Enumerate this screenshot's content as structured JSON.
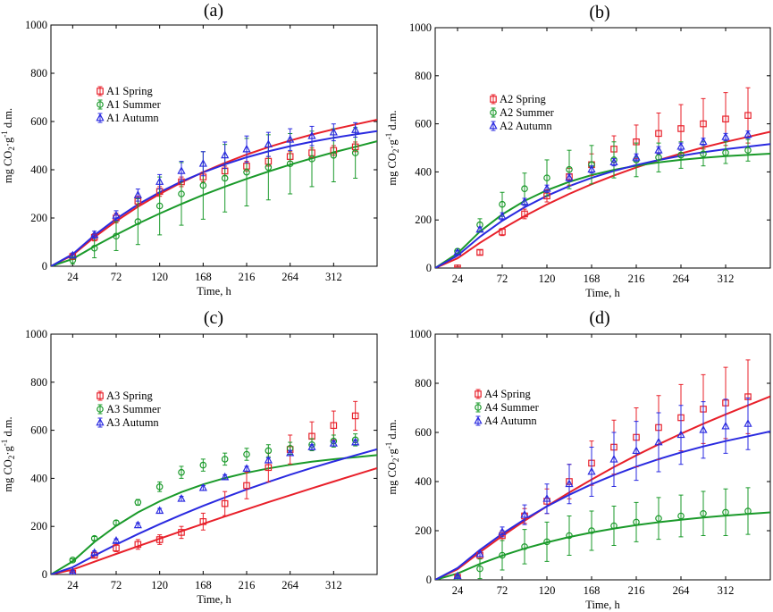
{
  "colors": {
    "spring": "#e8202a",
    "summer": "#1a9a2a",
    "autumn": "#2a2ae0"
  },
  "chart_data": [
    {
      "type": "scatter",
      "panel_label": "(a)",
      "xlabel": "Time, h",
      "ylabel_main": "mg CO",
      "ylabel_sub": "2",
      "ylabel_mid": "·g",
      "ylabel_sup": "-1",
      "ylabel_end": " d.m.",
      "xlim": [
        0,
        360
      ],
      "ylim": [
        0,
        1000
      ],
      "xticks": [
        24,
        72,
        120,
        168,
        216,
        264,
        312
      ],
      "yticks": [
        0,
        200,
        400,
        600,
        800,
        1000
      ],
      "x": [
        24,
        48,
        72,
        96,
        120,
        144,
        168,
        192,
        216,
        240,
        264,
        288,
        312,
        336
      ],
      "series": [
        {
          "name": "A1 Spring",
          "key": "spring",
          "marker": "square",
          "values": [
            40,
            120,
            200,
            270,
            310,
            350,
            370,
            395,
            415,
            435,
            455,
            470,
            480,
            495
          ],
          "errors": [
            10,
            15,
            20,
            20,
            20,
            20,
            20,
            20,
            20,
            20,
            20,
            20,
            20,
            20
          ],
          "fit": [
            46.4,
            120.6,
            187.0,
            246.5,
            299.8,
            347.5,
            390.3,
            428.6,
            462.9,
            493.6,
            521.1,
            545.8,
            567.9,
            587.7
          ]
        },
        {
          "name": "A1 Summer",
          "key": "summer",
          "marker": "circle",
          "values": [
            25,
            75,
            125,
            185,
            250,
            300,
            335,
            365,
            390,
            410,
            425,
            445,
            460,
            470
          ],
          "errors": [
            15,
            40,
            60,
            95,
            120,
            130,
            140,
            140,
            140,
            135,
            125,
            115,
            110,
            105
          ],
          "fit": [
            30.2,
            82.2,
            130.8,
            176.2,
            218.7,
            258.3,
            295.4,
            330.0,
            362.4,
            392.7,
            421.0,
            447.4,
            472.1,
            495.2
          ]
        },
        {
          "name": "A1 Autumn",
          "key": "autumn",
          "marker": "triangle",
          "values": [
            45,
            130,
            210,
            295,
            350,
            395,
            425,
            460,
            485,
            505,
            525,
            540,
            555,
            565
          ],
          "errors": [
            10,
            15,
            20,
            25,
            30,
            40,
            50,
            55,
            55,
            50,
            45,
            40,
            35,
            30
          ],
          "fit": [
            49.9,
            128.6,
            196.8,
            255.8,
            306.9,
            351.1,
            389.4,
            422.6,
            451.3,
            476.2,
            497.7,
            516.4,
            532.5,
            546.5
          ]
        }
      ]
    },
    {
      "type": "scatter",
      "panel_label": "(b)",
      "xlabel": "Time, h",
      "ylabel_main": "mg CO",
      "ylabel_sub": "2",
      "ylabel_mid": "·g",
      "ylabel_sup": "-1",
      "ylabel_end": " d.m.",
      "xlim": [
        0,
        360
      ],
      "ylim": [
        0,
        1000
      ],
      "xticks": [
        24,
        72,
        120,
        168,
        216,
        264,
        312
      ],
      "yticks": [
        0,
        200,
        400,
        600,
        800,
        1000
      ],
      "x": [
        24,
        48,
        72,
        96,
        120,
        144,
        168,
        192,
        216,
        240,
        264,
        288,
        312,
        336
      ],
      "series": [
        {
          "name": "A2 Spring",
          "key": "spring",
          "marker": "square",
          "values": [
            0,
            65,
            150,
            225,
            300,
            380,
            430,
            495,
            525,
            560,
            580,
            600,
            620,
            635
          ],
          "errors": [
            5,
            10,
            15,
            20,
            25,
            35,
            45,
            55,
            70,
            85,
            100,
            105,
            110,
            115
          ],
          "fit": [
            40.7,
            104.7,
            162.9,
            216.0,
            264.4,
            308.5,
            348.7,
            385.2,
            418.6,
            449.0,
            476.6,
            501.9,
            524.9,
            545.9
          ]
        },
        {
          "name": "A2 Summer",
          "key": "summer",
          "marker": "circle",
          "values": [
            70,
            180,
            265,
            330,
            375,
            410,
            430,
            450,
            450,
            460,
            470,
            475,
            480,
            490
          ],
          "errors": [
            10,
            25,
            50,
            65,
            75,
            80,
            80,
            75,
            70,
            60,
            55,
            50,
            45,
            45
          ],
          "fit": [
            61.0,
            151.5,
            222.9,
            279.3,
            323.8,
            358.9,
            386.6,
            408.5,
            425.8,
            439.4,
            450.2,
            458.7,
            465.4,
            470.7
          ]
        },
        {
          "name": "A2 Autumn",
          "key": "autumn",
          "marker": "triangle",
          "values": [
            65,
            160,
            215,
            275,
            330,
            375,
            410,
            440,
            460,
            490,
            505,
            525,
            545,
            555
          ],
          "errors": [
            8,
            10,
            15,
            15,
            15,
            15,
            15,
            15,
            15,
            15,
            15,
            15,
            15,
            15
          ],
          "fit": [
            51.7,
            130.1,
            196.5,
            252.8,
            300.4,
            340.8,
            375.0,
            404.0,
            428.5,
            449.3,
            466.9,
            481.8,
            494.5,
            505.2
          ]
        }
      ]
    },
    {
      "type": "scatter",
      "panel_label": "(c)",
      "xlabel": "Time, h",
      "ylabel_main": "mg CO",
      "ylabel_sub": "2",
      "ylabel_mid": "·g",
      "ylabel_sup": "-1",
      "ylabel_end": " d.m.",
      "xlim": [
        0,
        360
      ],
      "ylim": [
        0,
        1000
      ],
      "xticks": [
        24,
        72,
        120,
        168,
        216,
        264,
        312
      ],
      "yticks": [
        0,
        200,
        400,
        600,
        800,
        1000
      ],
      "x": [
        24,
        48,
        72,
        96,
        120,
        144,
        168,
        192,
        216,
        240,
        264,
        288,
        312,
        336
      ],
      "series": [
        {
          "name": "A3 Spring",
          "key": "spring",
          "marker": "square",
          "values": [
            5,
            80,
            110,
            125,
            145,
            175,
            220,
            295,
            370,
            445,
            520,
            575,
            620,
            660
          ],
          "errors": [
            5,
            10,
            15,
            20,
            20,
            25,
            35,
            50,
            55,
            60,
            60,
            60,
            60,
            60
          ],
          "fit": [
            20.2,
            53.0,
            85.4,
            117.4,
            149.0,
            180.1,
            210.8,
            241.2,
            271.1,
            300.6,
            329.7,
            358.4,
            386.8,
            414.8
          ]
        },
        {
          "name": "A3 Summer",
          "key": "summer",
          "marker": "circle",
          "values": [
            60,
            150,
            215,
            300,
            365,
            425,
            455,
            480,
            500,
            515,
            525,
            540,
            555,
            560
          ],
          "errors": [
            5,
            8,
            10,
            12,
            20,
            25,
            25,
            25,
            25,
            25,
            25,
            25,
            25,
            25
          ],
          "fit": [
            54.2,
            135.2,
            202.4,
            258.2,
            304.5,
            342.9,
            374.8,
            401.3,
            423.2,
            441.4,
            456.5,
            469.0,
            479.4,
            488.1
          ]
        },
        {
          "name": "A3 Autumn",
          "key": "autumn",
          "marker": "triangle",
          "values": [
            10,
            90,
            140,
            205,
            265,
            315,
            360,
            405,
            440,
            475,
            505,
            530,
            545,
            550
          ],
          "errors": [
            5,
            8,
            8,
            10,
            10,
            10,
            10,
            10,
            10,
            10,
            10,
            10,
            10,
            10
          ],
          "fit": [
            30.0,
            78.5,
            124.4,
            168.0,
            209.2,
            248.3,
            285.4,
            320.5,
            353.8,
            385.3,
            415.2,
            443.5,
            470.3,
            495.8
          ]
        }
      ]
    },
    {
      "type": "scatter",
      "panel_label": "(d)",
      "xlabel": "Time, h",
      "ylabel_main": "mg CO",
      "ylabel_sub": "2",
      "ylabel_mid": "·g",
      "ylabel_sup": "-1",
      "ylabel_end": " d.m.",
      "xlim": [
        0,
        360
      ],
      "ylim": [
        0,
        1000
      ],
      "xticks": [
        24,
        72,
        120,
        168,
        216,
        264,
        312
      ],
      "yticks": [
        0,
        200,
        400,
        600,
        800,
        1000
      ],
      "x": [
        24,
        48,
        72,
        96,
        120,
        144,
        168,
        192,
        216,
        240,
        264,
        288,
        312,
        336
      ],
      "series": [
        {
          "name": "A4 Spring",
          "key": "spring",
          "marker": "square",
          "values": [
            10,
            100,
            180,
            260,
            320,
            400,
            475,
            540,
            580,
            620,
            660,
            695,
            720,
            745
          ],
          "errors": [
            5,
            15,
            20,
            30,
            50,
            70,
            90,
            110,
            120,
            130,
            135,
            140,
            145,
            150
          ],
          "fit": [
            43.2,
            112.5,
            178.2,
            240.5,
            299.5,
            355.5,
            408.5,
            458.8,
            506.5,
            551.7,
            594.5,
            635.1,
            673.6,
            710.1
          ]
        },
        {
          "name": "A4 Summer",
          "key": "summer",
          "marker": "circle",
          "values": [
            5,
            45,
            100,
            135,
            155,
            180,
            200,
            220,
            235,
            250,
            260,
            270,
            275,
            280
          ],
          "errors": [
            5,
            40,
            60,
            70,
            80,
            80,
            80,
            80,
            80,
            85,
            85,
            90,
            95,
            95
          ],
          "fit": [
            25.8,
            64.8,
            98.5,
            127.5,
            152.5,
            174.1,
            192.7,
            208.8,
            222.6,
            234.6,
            244.9,
            253.8,
            261.5,
            268.1
          ]
        },
        {
          "name": "A4 Autumn",
          "key": "autumn",
          "marker": "triangle",
          "values": [
            15,
            105,
            195,
            265,
            330,
            390,
            440,
            490,
            525,
            560,
            590,
            610,
            625,
            635
          ],
          "errors": [
            5,
            10,
            20,
            40,
            60,
            80,
            100,
            110,
            120,
            120,
            120,
            115,
            110,
            105
          ],
          "fit": [
            48.0,
            121.4,
            187.2,
            246.1,
            298.9,
            346.3,
            388.6,
            426.6,
            460.6,
            491.1,
            518.4,
            542.8,
            564.7,
            584.4
          ]
        }
      ]
    }
  ]
}
